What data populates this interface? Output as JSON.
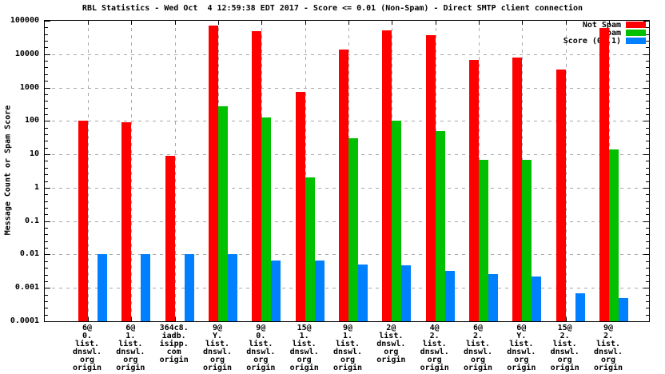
{
  "chart_data": {
    "type": "bar",
    "scale_y": "log10",
    "ylim": [
      0.0001,
      100000
    ],
    "title": "RBL Statistics - Wed Oct  4 12:59:38 EDT 2017 - Score <= 0.01 (Non-Spam) - Direct SMTP client connection",
    "ylabel": "Message Count or Spam Score",
    "xlabel": "",
    "grid": true,
    "legend_position": "top-right",
    "ytick_labels": [
      "100000",
      "10000",
      "1000",
      "100",
      "10",
      "1",
      "0.1",
      "0.01",
      "0.001",
      "0.0001"
    ],
    "categories": [
      [
        "6@",
        "0.",
        "list.",
        "dnswl.",
        "org",
        "origin"
      ],
      [
        "6@",
        "1.",
        "list.",
        "dnswl.",
        "org",
        "origin"
      ],
      [
        "364c8.",
        "iadb.",
        "isipp.",
        "com",
        "origin"
      ],
      [
        "9@",
        "Y.",
        "list.",
        "dnswl.",
        "org",
        "origin"
      ],
      [
        "9@",
        "0.",
        "list.",
        "dnswl.",
        "org",
        "origin"
      ],
      [
        "15@",
        "1.",
        "list.",
        "dnswl.",
        "org",
        "origin"
      ],
      [
        "9@",
        "1.",
        "list.",
        "dnswl.",
        "org",
        "origin"
      ],
      [
        "2@",
        "list.",
        "dnswl.",
        "org",
        "origin"
      ],
      [
        "4@",
        "2.",
        "list.",
        "dnswl.",
        "org",
        "origin"
      ],
      [
        "6@",
        "2.",
        "list.",
        "dnswl.",
        "org",
        "origin"
      ],
      [
        "6@",
        "Y.",
        "list.",
        "dnswl.",
        "org",
        "origin"
      ],
      [
        "15@",
        "2.",
        "list.",
        "dnswl.",
        "org",
        "origin"
      ],
      [
        "9@",
        "2.",
        "list.",
        "dnswl.",
        "org",
        "origin"
      ]
    ],
    "series": [
      {
        "name": "Not Spam",
        "color": "#ff0000",
        "values": [
          100,
          90,
          9,
          70000,
          48000,
          730,
          14000,
          52000,
          37000,
          6600,
          7800,
          3500,
          60000
        ]
      },
      {
        "name": "Spam",
        "color": "#00c000",
        "values": [
          null,
          null,
          null,
          280,
          125,
          2,
          30,
          100,
          50,
          7,
          7,
          null,
          14
        ]
      },
      {
        "name": "Score (0..1)",
        "color": "#0080ff",
        "values": [
          0.01,
          0.01,
          0.01,
          0.01,
          0.0065,
          0.0065,
          0.005,
          0.0048,
          0.0033,
          0.0026,
          0.0022,
          0.0007,
          0.0005
        ]
      }
    ],
    "colors": {
      "grid": "#a9a9a9",
      "axis": "#000000",
      "background": "#ffffff"
    }
  }
}
